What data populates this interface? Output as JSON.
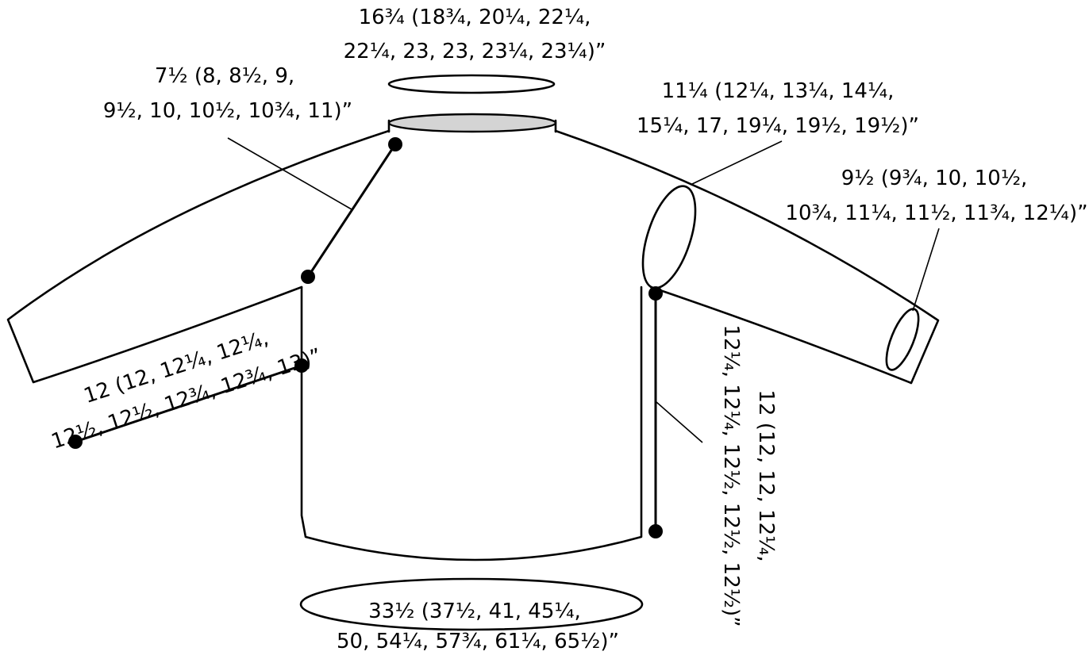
{
  "colors": {
    "line": "#000000",
    "neck_fill": "#d4d4d4",
    "background": "#ffffff"
  },
  "measurements": {
    "neck_circumference": {
      "line1": "16¾ (18¾, 20¼, 22¼,",
      "line2": "22¼, 23, 23, 23¼, 23¼)”"
    },
    "raglan_depth": {
      "line1": "7½ (8, 8½, 9,",
      "line2": "9½, 10, 10½, 10¾, 11)”"
    },
    "upper_arm": {
      "line1": "11¼ (12¼, 13¼, 14¼,",
      "line2": "15¼, 17, 19¼, 19½, 19½)”"
    },
    "cuff": {
      "line1": "9½ (9¾, 10, 10½,",
      "line2": "10¾, 11¼, 11½, 11¾, 12¼)”"
    },
    "sleeve_length": {
      "line1": "12 (12, 12¼, 12¼,",
      "line2": "12½, 12½, 12¾, 12¾, 13)”"
    },
    "body_length": {
      "line1": "12 (12, 12, 12¼,",
      "line2": "12¼, 12¼, 12½, 12½, 12½)”"
    },
    "hip_circumference": {
      "line1": "33½ (37½, 41, 45¼,",
      "line2": "50, 54¼, 57¾, 61¼, 65½)”"
    }
  }
}
